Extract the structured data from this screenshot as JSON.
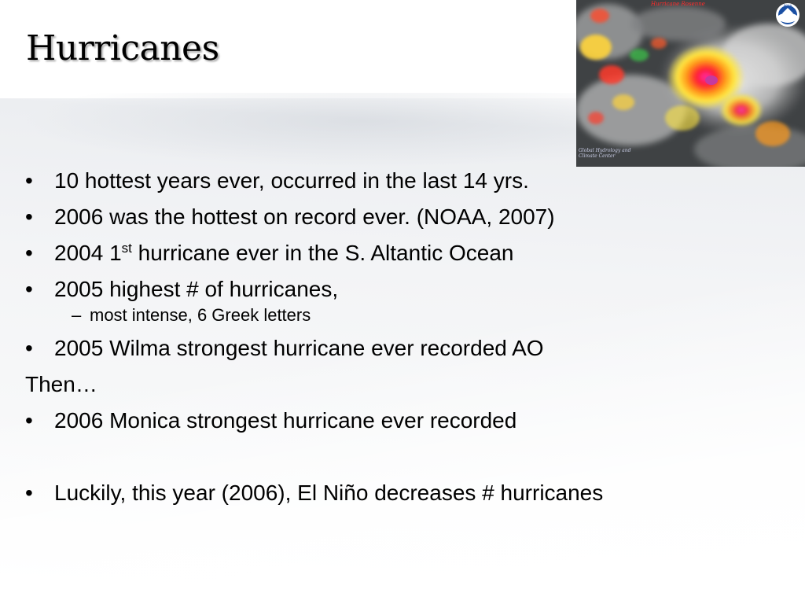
{
  "slide": {
    "title": "Hurricanes"
  },
  "satellite": {
    "header": "Hurricane Rosenne",
    "caption": "Global Hydrology and Climate Center",
    "logo": "NOAA"
  },
  "bullets": [
    {
      "level": 1,
      "text": "10 hottest years ever, occurred in the last 14 yrs."
    },
    {
      "level": 1,
      "text": "2006 was the hottest on record ever. (NOAA, 2007)"
    },
    {
      "level": 1,
      "pre": "2004 1",
      "sup": "st",
      "post": " hurricane ever in the S. Altantic Ocean"
    },
    {
      "level": 1,
      "text": "2005 highest # of hurricanes,"
    },
    {
      "level": 2,
      "text": "most intense, 6 Greek letters"
    },
    {
      "level": 1,
      "text": "2005 Wilma strongest hurricane ever recorded AO"
    },
    {
      "level": 0,
      "text": "Then…"
    },
    {
      "level": 1,
      "text": "2006 Monica strongest hurricane ever recorded"
    },
    {
      "level": 1,
      "text": "Luckily, this year (2006), El Niño decreases # hurricanes"
    }
  ],
  "colors": {
    "text": "#000000",
    "background": "#f3f4f6"
  },
  "icons": [
    "noaa-logo-icon"
  ]
}
